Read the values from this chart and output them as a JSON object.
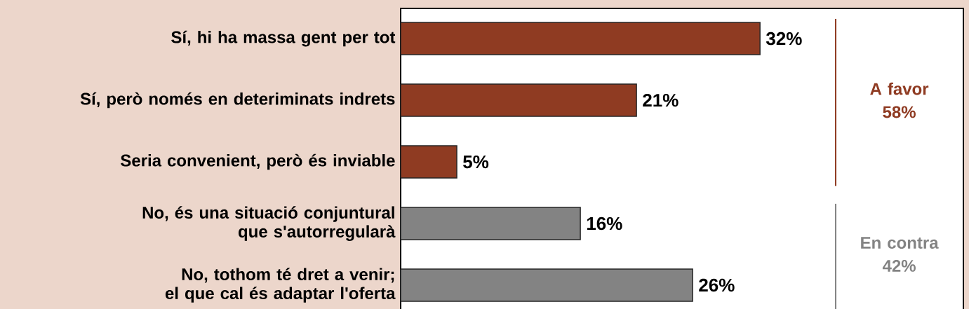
{
  "chart_data": {
    "type": "bar",
    "orientation": "horizontal",
    "categories": [
      "Sí, hi ha massa gent per tot",
      "Sí, però només en deteriminats indrets",
      "Seria convenient, però és inviable",
      "No, és una situació conjuntural que s'autorregularà",
      "No, tothom té dret a venir; el que cal és adaptar l'oferta"
    ],
    "values": [
      32,
      21,
      5,
      16,
      26
    ],
    "colors": [
      "#8f3b22",
      "#8f3b22",
      "#8f3b22",
      "#838383",
      "#838383"
    ],
    "value_labels": [
      "32%",
      "21%",
      "5%",
      "16%",
      "26%"
    ],
    "annotations": [
      "A favor 58%",
      "En contra 42%"
    ]
  }
}
